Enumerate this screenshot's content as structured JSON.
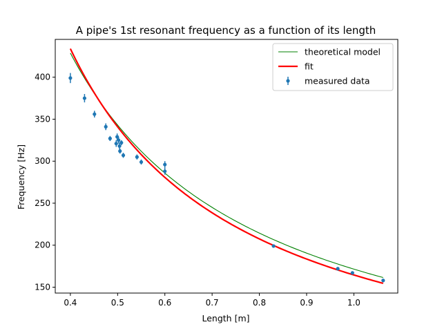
{
  "chart_data": {
    "type": "scatter",
    "title": "A pipe's 1st resonant frequency as a function of its length",
    "xlabel": "Length [m]",
    "ylabel": "Frequency [Hz]",
    "xlim": [
      0.368,
      1.093
    ],
    "ylim": [
      143,
      445
    ],
    "xticks": [
      "0.4",
      "0.5",
      "0.6",
      "0.7",
      "0.8",
      "0.9",
      "1.0"
    ],
    "xtick_values": [
      0.4,
      0.5,
      0.6,
      0.7,
      0.8,
      0.9,
      1.0
    ],
    "yticks": [
      "150",
      "200",
      "250",
      "300",
      "350",
      "400"
    ],
    "ytick_values": [
      150,
      200,
      250,
      300,
      350,
      400
    ],
    "grid": false,
    "legend_position": "top-right",
    "legend": [
      "theoretical model",
      "fit",
      "measured data"
    ],
    "series": [
      {
        "name": "theoretical model",
        "kind": "line",
        "color": "#008000",
        "x_range": [
          0.4,
          1.062
        ],
        "c": 171.5,
        "note_formula": "f = c / L"
      },
      {
        "name": "fit",
        "kind": "line",
        "color": "#ff0000",
        "x_range": [
          0.4,
          1.062
        ],
        "a": 159,
        "b": 0.0336
      },
      {
        "name": "measured data",
        "kind": "errorbar",
        "color": "#1f77b4",
        "points": [
          {
            "x": 0.4,
            "y": 399,
            "err": 6
          },
          {
            "x": 0.43,
            "y": 375,
            "err": 5
          },
          {
            "x": 0.451,
            "y": 356,
            "err": 4
          },
          {
            "x": 0.475,
            "y": 341,
            "err": 4
          },
          {
            "x": 0.484,
            "y": 327,
            "err": 3
          },
          {
            "x": 0.497,
            "y": 321,
            "err": 4
          },
          {
            "x": 0.499,
            "y": 329,
            "err": 4
          },
          {
            "x": 0.502,
            "y": 325,
            "err": 4
          },
          {
            "x": 0.504,
            "y": 318,
            "err": 4
          },
          {
            "x": 0.505,
            "y": 312,
            "err": 3
          },
          {
            "x": 0.508,
            "y": 322,
            "err": 3
          },
          {
            "x": 0.512,
            "y": 307,
            "err": 3
          },
          {
            "x": 0.541,
            "y": 305,
            "err": 3
          },
          {
            "x": 0.55,
            "y": 299,
            "err": 3
          },
          {
            "x": 0.6,
            "y": 296,
            "err": 4
          },
          {
            "x": 0.6,
            "y": 288,
            "err": 4
          },
          {
            "x": 0.83,
            "y": 199,
            "err": 2
          },
          {
            "x": 0.966,
            "y": 172,
            "err": 2
          },
          {
            "x": 0.997,
            "y": 167,
            "err": 2
          },
          {
            "x": 1.062,
            "y": 158,
            "err": 2
          }
        ]
      }
    ]
  }
}
